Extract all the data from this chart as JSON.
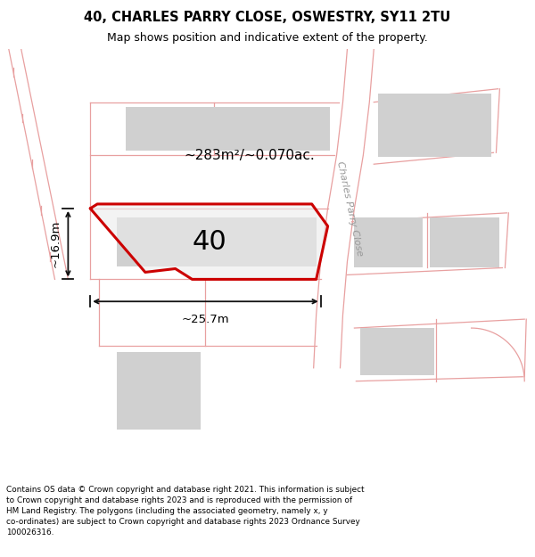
{
  "title_line1": "40, CHARLES PARRY CLOSE, OSWESTRY, SY11 2TU",
  "title_line2": "Map shows position and indicative extent of the property.",
  "footer_text": "Contains OS data © Crown copyright and database right 2021. This information is subject to Crown copyright and database rights 2023 and is reproduced with the permission of HM Land Registry. The polygons (including the associated geometry, namely x, y co-ordinates) are subject to Crown copyright and database rights 2023 Ordnance Survey 100026316.",
  "plot_number": "40",
  "area_label": "~283m²/~0.070ac.",
  "width_label": "~25.7m",
  "height_label": "~16.9m",
  "map_bg": "#f2f0f0",
  "plot_outline": "#cc0000",
  "road_line_color": "#e8a0a0",
  "building_fill": "#d0d0d0",
  "dim_line_color": "#111111",
  "street_label": "Charles Parry Close",
  "figsize": [
    6.0,
    6.25
  ],
  "dpi": 100
}
